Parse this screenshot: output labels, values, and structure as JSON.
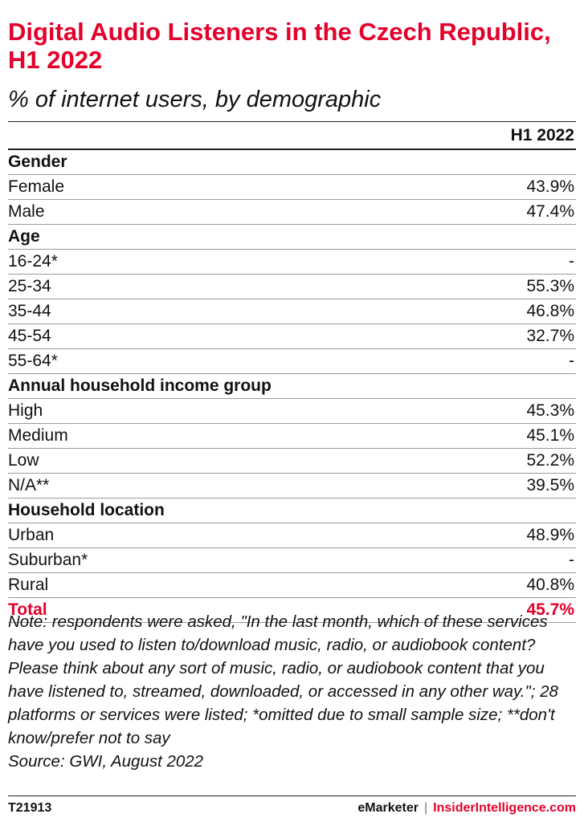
{
  "title": "Digital Audio Listeners in the Czech Republic, H1 2022",
  "subtitle": "% of internet users, by demographic",
  "column_header": "H1 2022",
  "chart_data": {
    "type": "table",
    "title": "Digital Audio Listeners in the Czech Republic, H1 2022",
    "subtitle": "% of internet users, by demographic",
    "columns": [
      "H1 2022"
    ],
    "rows": [
      {
        "kind": "group",
        "label": "Gender",
        "value": ""
      },
      {
        "kind": "data",
        "label": "Female",
        "value": "43.9%"
      },
      {
        "kind": "data",
        "label": "Male",
        "value": "47.4%"
      },
      {
        "kind": "group",
        "label": "Age",
        "value": ""
      },
      {
        "kind": "data",
        "label": "16-24*",
        "value": "-"
      },
      {
        "kind": "data",
        "label": "25-34",
        "value": "55.3%"
      },
      {
        "kind": "data",
        "label": "35-44",
        "value": "46.8%"
      },
      {
        "kind": "data",
        "label": "45-54",
        "value": "32.7%"
      },
      {
        "kind": "data",
        "label": "55-64*",
        "value": "-"
      },
      {
        "kind": "group",
        "label": "Annual household income group",
        "value": ""
      },
      {
        "kind": "data",
        "label": "High",
        "value": "45.3%"
      },
      {
        "kind": "data",
        "label": "Medium",
        "value": "45.1%"
      },
      {
        "kind": "data",
        "label": "Low",
        "value": "52.2%"
      },
      {
        "kind": "data",
        "label": "N/A**",
        "value": "39.5%"
      },
      {
        "kind": "group",
        "label": "Household location",
        "value": ""
      },
      {
        "kind": "data",
        "label": "Urban",
        "value": "48.9%"
      },
      {
        "kind": "data",
        "label": "Suburban*",
        "value": "-"
      },
      {
        "kind": "data",
        "label": "Rural",
        "value": "40.8%"
      },
      {
        "kind": "total",
        "label": "Total",
        "value": "45.7%"
      }
    ]
  },
  "note": "Note: respondents were asked, \"In the last month, which of these services have you used to listen to/download music, radio, or audiobook content? Please think about any sort of music, radio, or audiobook content that you have listened to, streamed, downloaded, or accessed in any other way.\"; 28 platforms or services were listed; *omitted due to small sample size; **don't know/prefer not to say",
  "source": "Source: GWI, August 2022",
  "footer": {
    "chart_id": "T21913",
    "brand": "eMarketer",
    "separator": "|",
    "site": "InsiderIntelligence.com"
  },
  "colors": {
    "accent": "#e4002b",
    "text": "#111111"
  }
}
